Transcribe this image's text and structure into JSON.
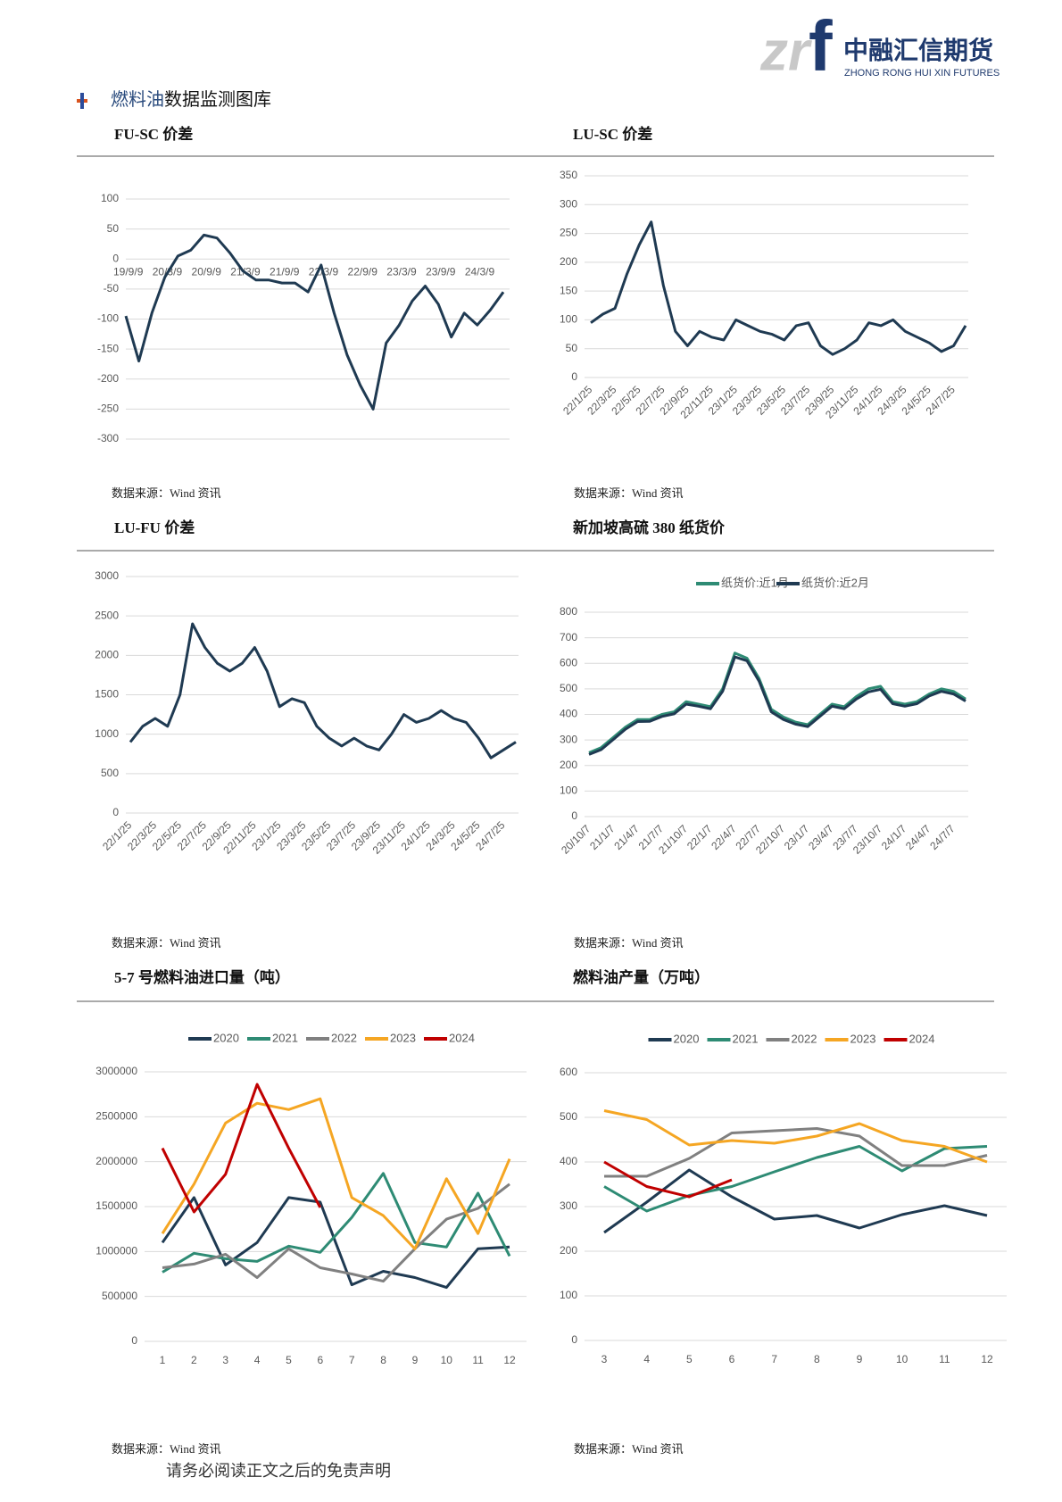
{
  "header": {
    "logo_a": "zr",
    "logo_b": "f",
    "company": "中融汇信期货",
    "company_en": "ZHONG RONG HUI XIN FUTURES"
  },
  "section": {
    "highlight": "燃料油",
    "rest": "数据监测图库"
  },
  "footer": "请务必阅读正文之后的免责声明",
  "chart_data": [
    {
      "type": "line",
      "title": "FU-SC 价差",
      "source": "数据来源：Wind 资讯",
      "color": "#1f3a52",
      "grid": true,
      "categories": [
        "19/9/9",
        null,
        null,
        "20/3/9",
        null,
        null,
        "20/9/9",
        null,
        null,
        "21/3/9",
        null,
        null,
        "21/9/9",
        null,
        null,
        "22/3/9",
        null,
        null,
        "22/9/9",
        null,
        null,
        "23/3/9",
        null,
        null,
        "23/9/9",
        null,
        null,
        "24/3/9",
        null,
        null
      ],
      "values": [
        -95,
        -170,
        -90,
        -30,
        5,
        15,
        40,
        35,
        10,
        -20,
        -35,
        -35,
        -40,
        -40,
        -55,
        -10,
        -90,
        -160,
        -210,
        -250,
        -140,
        -110,
        -70,
        -45,
        -75,
        -130,
        -90,
        -110,
        -85,
        -55
      ],
      "ylim": [
        -300,
        100
      ],
      "yticks": [
        100,
        50,
        0,
        -50,
        -100,
        -150,
        -200,
        -250,
        -300
      ]
    },
    {
      "type": "line",
      "title": "LU-SC 价差",
      "source": "数据来源：Wind 资讯",
      "color": "#1f3a52",
      "grid": true,
      "categories": [
        "22/1/25",
        null,
        "22/3/25",
        null,
        "22/5/25",
        null,
        "22/7/25",
        null,
        "22/9/25",
        null,
        "22/11/25",
        null,
        "23/1/25",
        null,
        "23/3/25",
        null,
        "23/5/25",
        null,
        "23/7/25",
        null,
        "23/9/25",
        null,
        "23/11/25",
        null,
        "24/1/25",
        null,
        "24/3/25",
        null,
        "24/5/25",
        null,
        "24/7/25",
        null
      ],
      "values": [
        95,
        110,
        120,
        180,
        230,
        270,
        160,
        80,
        55,
        80,
        70,
        65,
        100,
        90,
        80,
        75,
        65,
        90,
        95,
        55,
        40,
        50,
        65,
        95,
        90,
        100,
        80,
        70,
        60,
        45,
        55,
        90
      ],
      "ylim": [
        0,
        350
      ],
      "yticks": [
        350,
        300,
        250,
        200,
        150,
        100,
        50,
        0
      ]
    },
    {
      "type": "line",
      "title": "LU-FU 价差",
      "source": "数据来源：Wind 资讯",
      "color": "#1f3a52",
      "grid": true,
      "categories": [
        "22/1/25",
        null,
        "22/3/25",
        null,
        "22/5/25",
        null,
        "22/7/25",
        null,
        "22/9/25",
        null,
        "22/11/25",
        null,
        "23/1/25",
        null,
        "23/3/25",
        null,
        "23/5/25",
        null,
        "23/7/25",
        null,
        "23/9/25",
        null,
        "23/11/25",
        null,
        "24/1/25",
        null,
        "24/3/25",
        null,
        "24/5/25",
        null,
        "24/7/25",
        null
      ],
      "values": [
        900,
        1100,
        1200,
        1100,
        1500,
        2400,
        2100,
        1900,
        1800,
        1900,
        2100,
        1800,
        1350,
        1450,
        1400,
        1100,
        950,
        850,
        950,
        850,
        800,
        1000,
        1250,
        1150,
        1200,
        1300,
        1200,
        1150,
        950,
        700,
        800,
        900
      ],
      "ylim": [
        0,
        3000
      ],
      "yticks": [
        3000,
        2500,
        2000,
        1500,
        1000,
        500,
        0
      ]
    },
    {
      "type": "line",
      "title": "新加坡高硫 380 纸货价",
      "source": "数据来源：Wind 资讯",
      "grid": true,
      "categories": [
        "20/10/7",
        null,
        "21/1/7",
        null,
        "21/4/7",
        null,
        "21/7/7",
        null,
        "21/10/7",
        null,
        "22/1/7",
        null,
        "22/4/7",
        null,
        "22/7/7",
        null,
        "22/10/7",
        null,
        "23/1/7",
        null,
        "23/4/7",
        null,
        "23/7/7",
        null,
        "23/10/7",
        null,
        "24/1/7",
        null,
        "24/4/7",
        null,
        "24/7/7",
        null
      ],
      "series": [
        {
          "name": "纸货价:近1月",
          "color": "#2e8b74",
          "values": [
            250,
            270,
            310,
            350,
            380,
            380,
            400,
            410,
            450,
            440,
            430,
            500,
            640,
            620,
            540,
            420,
            390,
            370,
            360,
            400,
            440,
            430,
            470,
            500,
            510,
            450,
            440,
            450,
            480,
            500,
            490,
            460
          ]
        },
        {
          "name": "纸货价:近2月",
          "color": "#1f3a52",
          "values": [
            243,
            262,
            302,
            342,
            372,
            373,
            392,
            402,
            440,
            432,
            422,
            490,
            625,
            610,
            530,
            410,
            380,
            362,
            352,
            392,
            432,
            422,
            460,
            488,
            498,
            442,
            432,
            442,
            472,
            490,
            480,
            452
          ]
        }
      ],
      "ylim": [
        0,
        800
      ],
      "yticks": [
        800,
        700,
        600,
        500,
        400,
        300,
        200,
        100,
        0
      ]
    },
    {
      "type": "line",
      "title": "5-7 号燃料油进口量（吨）",
      "source": "数据来源：Wind 资讯",
      "grid": true,
      "band": true,
      "categories": [
        "1",
        "2",
        "3",
        "4",
        "5",
        "6",
        "7",
        "8",
        "9",
        "10",
        "11",
        "12"
      ],
      "series": [
        {
          "name": "2020",
          "color": "#1f3a52",
          "values": [
            1100000,
            1600000,
            850000,
            1100000,
            1600000,
            1550000,
            630000,
            780000,
            710000,
            600000,
            1030000,
            1050000
          ]
        },
        {
          "name": "2021",
          "color": "#2e8b74",
          "values": [
            770000,
            980000,
            920000,
            890000,
            1060000,
            990000,
            1380000,
            1870000,
            1100000,
            1050000,
            1650000,
            950000
          ]
        },
        {
          "name": "2022",
          "color": "#808080",
          "values": [
            820000,
            860000,
            970000,
            710000,
            1030000,
            820000,
            750000,
            670000,
            1030000,
            1360000,
            1480000,
            1750000
          ]
        },
        {
          "name": "2023",
          "color": "#f5a623",
          "values": [
            1200000,
            1750000,
            2430000,
            2650000,
            2580000,
            2700000,
            1600000,
            1400000,
            1030000,
            1810000,
            1200000,
            2030000
          ]
        },
        {
          "name": "2024",
          "color": "#c00000",
          "values": [
            2150000,
            1440000,
            1860000,
            2860000,
            2150000,
            1490000,
            null,
            null,
            null,
            null,
            null,
            null
          ]
        }
      ],
      "ylim": [
        0,
        3000000
      ],
      "yticks": [
        3000000,
        2500000,
        2000000,
        1500000,
        1000000,
        500000,
        0
      ]
    },
    {
      "type": "line",
      "title": "燃料油产量（万吨）",
      "source": "数据来源：Wind 资讯",
      "grid": true,
      "band": true,
      "categories": [
        "3",
        "4",
        "5",
        "6",
        "7",
        "8",
        "9",
        "10",
        "11",
        "12"
      ],
      "series": [
        {
          "name": "2020",
          "color": "#1f3a52",
          "values": [
            242,
            310,
            382,
            322,
            272,
            280,
            252,
            282,
            302,
            280
          ]
        },
        {
          "name": "2021",
          "color": "#2e8b74",
          "values": [
            345,
            290,
            325,
            345,
            378,
            410,
            435,
            380,
            430,
            435
          ]
        },
        {
          "name": "2022",
          "color": "#808080",
          "values": [
            368,
            368,
            408,
            465,
            470,
            475,
            458,
            392,
            392,
            415
          ]
        },
        {
          "name": "2023",
          "color": "#f5a623",
          "values": [
            515,
            495,
            438,
            448,
            442,
            458,
            486,
            448,
            435,
            400
          ]
        },
        {
          "name": "2024",
          "color": "#c00000",
          "values": [
            400,
            345,
            322,
            360,
            null,
            null,
            null,
            null,
            null,
            null
          ]
        }
      ],
      "ylim": [
        0,
        600
      ],
      "yticks": [
        600,
        500,
        400,
        300,
        200,
        100,
        0
      ]
    }
  ]
}
